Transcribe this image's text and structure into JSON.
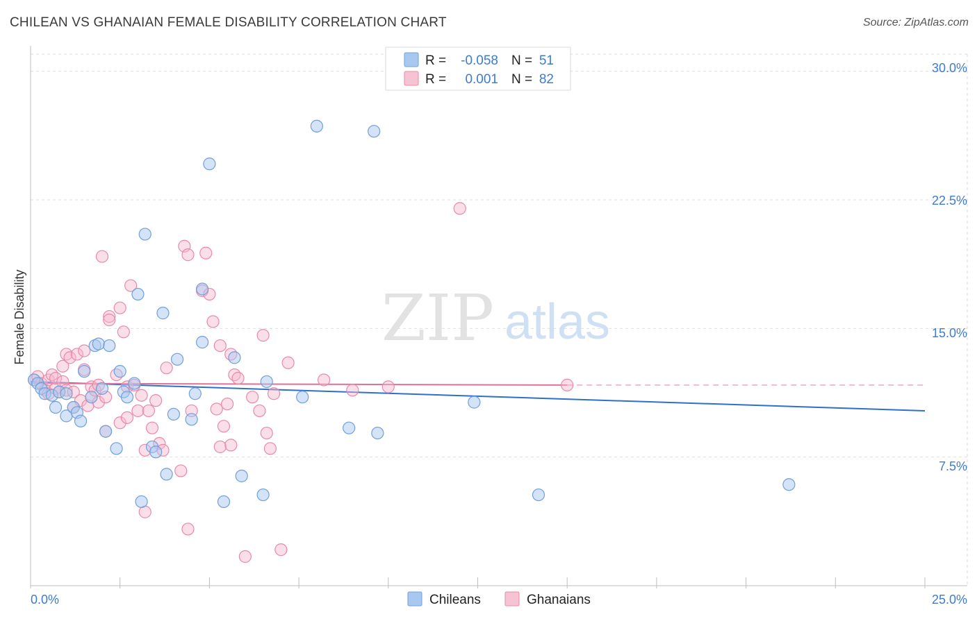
{
  "title": "CHILEAN VS GHANAIAN FEMALE DISABILITY CORRELATION CHART",
  "source": "Source: ZipAtlas.com",
  "watermark": {
    "zip": "ZIP",
    "atlas": "atlas"
  },
  "colors": {
    "blue_fill": "#a9c8f0",
    "blue_stroke": "#6f9fdc",
    "blue_line": "#2f6fcb",
    "pink_fill": "#f6b8cb",
    "pink_stroke": "#e889a8",
    "pink_line": "#e0709a",
    "axis_text": "#3d7bd1",
    "grid": "#dddddd"
  },
  "legend": {
    "rows": [
      {
        "r_label": "R =",
        "r_value": "-0.058",
        "n_label": "N =",
        "n_value": "51",
        "series": "Chileans"
      },
      {
        "r_label": "R =",
        "r_value": "0.001",
        "n_label": "N =",
        "n_value": "82",
        "series": "Ghanaians"
      }
    ]
  },
  "bottom_legend": [
    "Chileans",
    "Ghanaians"
  ],
  "chart_data": {
    "type": "scatter",
    "title": "CHILEAN VS GHANAIAN FEMALE DISABILITY CORRELATION CHART",
    "xlabel": "",
    "ylabel": "Female Disability",
    "xlim": [
      0,
      25
    ],
    "ylim": [
      0,
      31
    ],
    "x_tick_labels": [
      "0.0%",
      "25.0%"
    ],
    "y_ticks": [
      7.5,
      15.0,
      22.5,
      30.0
    ],
    "y_tick_labels": [
      "7.5%",
      "15.0%",
      "22.5%",
      "30.0%"
    ],
    "series": [
      {
        "name": "Chileans",
        "trend": {
          "x": [
            0,
            25
          ],
          "y": [
            11.9,
            10.2
          ]
        },
        "points": [
          [
            0.1,
            12.0
          ],
          [
            0.2,
            11.8
          ],
          [
            0.3,
            11.5
          ],
          [
            0.4,
            11.2
          ],
          [
            0.6,
            11.1
          ],
          [
            0.7,
            10.4
          ],
          [
            0.8,
            11.3
          ],
          [
            1.0,
            11.2
          ],
          [
            1.0,
            9.9
          ],
          [
            1.2,
            10.4
          ],
          [
            1.3,
            10.1
          ],
          [
            1.4,
            9.6
          ],
          [
            1.5,
            12.5
          ],
          [
            1.7,
            11.0
          ],
          [
            1.8,
            14.0
          ],
          [
            1.9,
            14.1
          ],
          [
            2.0,
            11.5
          ],
          [
            2.1,
            9.0
          ],
          [
            2.2,
            14.0
          ],
          [
            2.4,
            8.0
          ],
          [
            2.5,
            12.5
          ],
          [
            2.6,
            11.3
          ],
          [
            2.7,
            11.0
          ],
          [
            2.9,
            11.8
          ],
          [
            3.0,
            17.0
          ],
          [
            3.1,
            4.9
          ],
          [
            3.2,
            20.5
          ],
          [
            3.4,
            8.1
          ],
          [
            3.5,
            7.8
          ],
          [
            3.7,
            15.9
          ],
          [
            3.8,
            6.5
          ],
          [
            4.0,
            10.0
          ],
          [
            4.1,
            13.2
          ],
          [
            4.5,
            9.7
          ],
          [
            4.6,
            11.2
          ],
          [
            4.8,
            17.3
          ],
          [
            4.8,
            14.2
          ],
          [
            5.0,
            24.6
          ],
          [
            5.4,
            4.9
          ],
          [
            5.7,
            13.3
          ],
          [
            5.9,
            6.4
          ],
          [
            6.5,
            5.3
          ],
          [
            6.6,
            11.9
          ],
          [
            7.6,
            11.0
          ],
          [
            8.0,
            26.8
          ],
          [
            8.9,
            9.2
          ],
          [
            9.6,
            26.5
          ],
          [
            9.7,
            8.9
          ],
          [
            12.4,
            10.7
          ],
          [
            14.2,
            5.3
          ],
          [
            21.2,
            5.9
          ]
        ]
      },
      {
        "name": "Ghanaians",
        "trend": {
          "x": [
            0,
            15
          ],
          "y": [
            11.8,
            11.7
          ]
        },
        "points": [
          [
            0.1,
            12.0
          ],
          [
            0.2,
            12.2
          ],
          [
            0.3,
            11.8
          ],
          [
            0.4,
            11.4
          ],
          [
            0.5,
            12.0
          ],
          [
            0.5,
            11.2
          ],
          [
            0.6,
            12.3
          ],
          [
            0.7,
            11.5
          ],
          [
            0.7,
            12.1
          ],
          [
            0.8,
            11.3
          ],
          [
            0.9,
            11.9
          ],
          [
            0.9,
            12.8
          ],
          [
            1.0,
            11.4
          ],
          [
            1.0,
            13.5
          ],
          [
            1.1,
            13.3
          ],
          [
            1.2,
            11.3
          ],
          [
            1.2,
            10.4
          ],
          [
            1.3,
            13.5
          ],
          [
            1.4,
            10.8
          ],
          [
            1.5,
            13.7
          ],
          [
            1.5,
            12.6
          ],
          [
            1.6,
            10.5
          ],
          [
            1.7,
            11.6
          ],
          [
            1.7,
            11.0
          ],
          [
            1.8,
            11.4
          ],
          [
            1.9,
            11.7
          ],
          [
            1.9,
            10.7
          ],
          [
            2.0,
            19.2
          ],
          [
            2.1,
            11.0
          ],
          [
            2.1,
            9.0
          ],
          [
            2.2,
            15.7
          ],
          [
            2.2,
            15.5
          ],
          [
            2.4,
            12.3
          ],
          [
            2.5,
            9.5
          ],
          [
            2.5,
            16.2
          ],
          [
            2.6,
            14.8
          ],
          [
            2.7,
            11.6
          ],
          [
            2.7,
            9.8
          ],
          [
            2.8,
            17.5
          ],
          [
            2.9,
            11.7
          ],
          [
            3.0,
            10.2
          ],
          [
            3.1,
            11.1
          ],
          [
            3.2,
            7.9
          ],
          [
            3.2,
            4.3
          ],
          [
            3.3,
            10.2
          ],
          [
            3.4,
            9.2
          ],
          [
            3.5,
            10.8
          ],
          [
            3.6,
            8.3
          ],
          [
            3.7,
            7.9
          ],
          [
            3.8,
            12.7
          ],
          [
            4.2,
            6.7
          ],
          [
            4.3,
            19.8
          ],
          [
            4.4,
            3.3
          ],
          [
            4.4,
            19.3
          ],
          [
            4.5,
            10.2
          ],
          [
            4.8,
            17.2
          ],
          [
            4.9,
            19.4
          ],
          [
            5.0,
            17.0
          ],
          [
            5.1,
            15.4
          ],
          [
            5.2,
            10.3
          ],
          [
            5.3,
            14.0
          ],
          [
            5.3,
            8.1
          ],
          [
            5.4,
            9.3
          ],
          [
            5.6,
            8.2
          ],
          [
            5.5,
            10.6
          ],
          [
            5.6,
            13.5
          ],
          [
            5.7,
            12.3
          ],
          [
            5.8,
            12.1
          ],
          [
            6.0,
            1.7
          ],
          [
            6.2,
            11.0
          ],
          [
            6.4,
            10.2
          ],
          [
            6.5,
            14.6
          ],
          [
            6.6,
            8.9
          ],
          [
            6.7,
            8.0
          ],
          [
            6.8,
            11.2
          ],
          [
            7.0,
            2.1
          ],
          [
            7.2,
            13.0
          ],
          [
            8.2,
            12.0
          ],
          [
            9.0,
            11.4
          ],
          [
            10.0,
            11.6
          ],
          [
            12.0,
            22.0
          ],
          [
            15.0,
            11.7
          ]
        ]
      }
    ]
  }
}
